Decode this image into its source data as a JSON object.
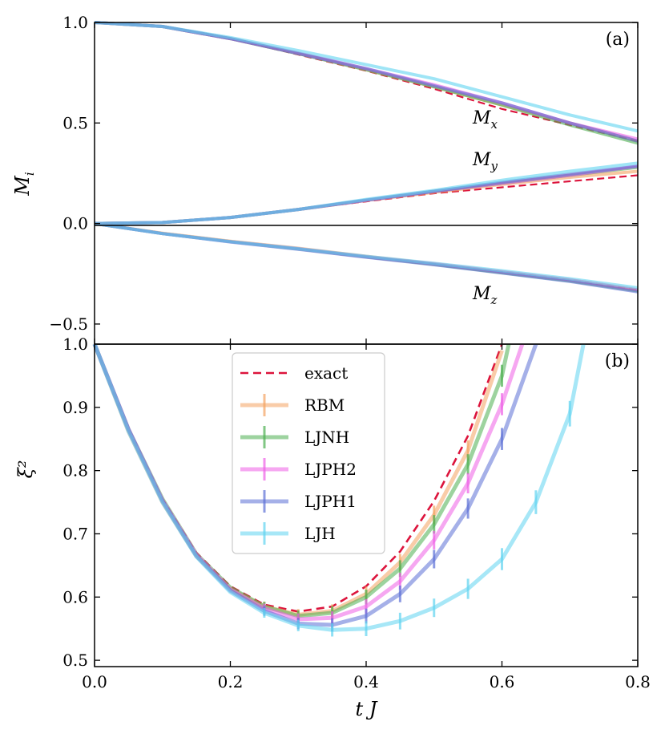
{
  "chart_data": [
    {
      "panel": "(a)",
      "type": "line",
      "ylabel": "M_i",
      "xlabel": "",
      "xlim": [
        0,
        0.8
      ],
      "ylim": [
        -0.6,
        1.0
      ],
      "x_ticks": [
        "0.0",
        "0.2",
        "0.4",
        "0.6",
        "0.8"
      ],
      "y_ticks": [
        "-0.5",
        "0.0",
        "0.5",
        "1.0"
      ],
      "annotations": [
        "M_x",
        "M_y",
        "M_z"
      ],
      "x": [
        0,
        0.1,
        0.2,
        0.3,
        0.4,
        0.5,
        0.6,
        0.7,
        0.8
      ],
      "groups": [
        {
          "component": "M_x",
          "series": [
            {
              "name": "exact",
              "values": [
                1.0,
                0.98,
                0.92,
                0.84,
                0.76,
                0.67,
                0.57,
                0.49,
                0.41
              ]
            },
            {
              "name": "RBM",
              "values": [
                1.0,
                0.98,
                0.92,
                0.845,
                0.765,
                0.68,
                0.59,
                0.5,
                0.41
              ]
            },
            {
              "name": "LJNH",
              "values": [
                1.0,
                0.98,
                0.92,
                0.845,
                0.765,
                0.68,
                0.59,
                0.49,
                0.4
              ]
            },
            {
              "name": "LJPH2",
              "values": [
                1.0,
                0.98,
                0.92,
                0.848,
                0.77,
                0.69,
                0.6,
                0.5,
                0.42
              ]
            },
            {
              "name": "LJPH1",
              "values": [
                1.0,
                0.98,
                0.92,
                0.845,
                0.77,
                0.685,
                0.6,
                0.5,
                0.41
              ]
            },
            {
              "name": "LJH",
              "values": [
                1.0,
                0.98,
                0.925,
                0.86,
                0.79,
                0.72,
                0.63,
                0.54,
                0.46
              ]
            }
          ]
        },
        {
          "component": "M_y",
          "series": [
            {
              "name": "exact",
              "values": [
                0.0,
                0.005,
                0.03,
                0.07,
                0.11,
                0.15,
                0.18,
                0.21,
                0.24
              ]
            },
            {
              "name": "RBM",
              "values": [
                0.0,
                0.005,
                0.03,
                0.07,
                0.115,
                0.155,
                0.195,
                0.23,
                0.26
              ]
            },
            {
              "name": "LJNH",
              "values": [
                0.0,
                0.005,
                0.03,
                0.07,
                0.115,
                0.16,
                0.2,
                0.24,
                0.28
              ]
            },
            {
              "name": "LJPH2",
              "values": [
                0.0,
                0.005,
                0.03,
                0.07,
                0.115,
                0.16,
                0.2,
                0.24,
                0.285
              ]
            },
            {
              "name": "LJPH1",
              "values": [
                0.0,
                0.005,
                0.03,
                0.07,
                0.117,
                0.16,
                0.205,
                0.245,
                0.285
              ]
            },
            {
              "name": "LJH",
              "values": [
                0.0,
                0.005,
                0.03,
                0.07,
                0.12,
                0.165,
                0.215,
                0.26,
                0.3
              ]
            }
          ]
        },
        {
          "component": "M_z",
          "series": [
            {
              "name": "exact",
              "values": [
                0.0,
                -0.05,
                -0.09,
                -0.125,
                -0.165,
                -0.2,
                -0.24,
                -0.28,
                -0.33
              ]
            },
            {
              "name": "RBM",
              "values": [
                0.0,
                -0.048,
                -0.088,
                -0.123,
                -0.163,
                -0.2,
                -0.24,
                -0.28,
                -0.33
              ]
            },
            {
              "name": "LJNH",
              "values": [
                0.0,
                -0.05,
                -0.09,
                -0.126,
                -0.166,
                -0.203,
                -0.245,
                -0.285,
                -0.335
              ]
            },
            {
              "name": "LJPH2",
              "values": [
                0.0,
                -0.05,
                -0.09,
                -0.125,
                -0.165,
                -0.2,
                -0.24,
                -0.28,
                -0.33
              ]
            },
            {
              "name": "LJPH1",
              "values": [
                0.0,
                -0.05,
                -0.092,
                -0.128,
                -0.168,
                -0.205,
                -0.246,
                -0.288,
                -0.34
              ]
            },
            {
              "name": "LJH",
              "values": [
                0.0,
                -0.05,
                -0.09,
                -0.125,
                -0.163,
                -0.198,
                -0.235,
                -0.275,
                -0.32
              ]
            }
          ]
        }
      ]
    },
    {
      "panel": "(b)",
      "type": "line",
      "ylabel": "ξ²",
      "xlabel": "t J",
      "xlim": [
        0,
        0.8
      ],
      "ylim": [
        0.49,
        1.0
      ],
      "x_ticks": [
        "0.0",
        "0.2",
        "0.4",
        "0.6",
        "0.8"
      ],
      "y_ticks": [
        "0.5",
        "0.6",
        "0.7",
        "0.8",
        "0.9",
        "1.0"
      ],
      "legend_position": "upper-center",
      "series": [
        {
          "name": "exact",
          "style": "dashed",
          "color": "#dc143c",
          "x": [
            0,
            0.05,
            0.1,
            0.15,
            0.2,
            0.25,
            0.3,
            0.35,
            0.4,
            0.45,
            0.5,
            0.55,
            0.6
          ],
          "values": [
            1.0,
            0.865,
            0.755,
            0.67,
            0.617,
            0.588,
            0.577,
            0.585,
            0.617,
            0.672,
            0.752,
            0.855,
            1.0
          ]
        },
        {
          "name": "RBM",
          "style": "errorbar",
          "color": "#f4a261",
          "x": [
            0,
            0.05,
            0.1,
            0.15,
            0.2,
            0.25,
            0.3,
            0.35,
            0.4,
            0.45,
            0.5,
            0.55,
            0.6
          ],
          "values": [
            1.0,
            0.862,
            0.75,
            0.665,
            0.613,
            0.585,
            0.572,
            0.578,
            0.605,
            0.655,
            0.73,
            0.832,
            0.99
          ]
        },
        {
          "name": "LJNH",
          "style": "errorbar",
          "color": "#4caf50",
          "x": [
            0,
            0.05,
            0.1,
            0.15,
            0.2,
            0.25,
            0.3,
            0.35,
            0.4,
            0.45,
            0.5,
            0.55,
            0.6,
            0.61
          ],
          "values": [
            1.0,
            0.865,
            0.755,
            0.668,
            0.615,
            0.585,
            0.57,
            0.575,
            0.6,
            0.645,
            0.715,
            0.81,
            0.95,
            1.0
          ]
        },
        {
          "name": "LJPH2",
          "style": "errorbar",
          "color": "#ee5ee6",
          "x": [
            0,
            0.05,
            0.1,
            0.15,
            0.2,
            0.25,
            0.3,
            0.35,
            0.4,
            0.45,
            0.5,
            0.55,
            0.6,
            0.63
          ],
          "values": [
            1.0,
            0.865,
            0.753,
            0.667,
            0.612,
            0.582,
            0.565,
            0.567,
            0.585,
            0.625,
            0.69,
            0.78,
            0.905,
            1.0
          ]
        },
        {
          "name": "LJPH1",
          "style": "errorbar",
          "color": "#5b6fd6",
          "x": [
            0,
            0.05,
            0.1,
            0.15,
            0.2,
            0.25,
            0.3,
            0.35,
            0.4,
            0.45,
            0.5,
            0.55,
            0.6,
            0.65
          ],
          "values": [
            1.0,
            0.865,
            0.752,
            0.665,
            0.61,
            0.578,
            0.558,
            0.556,
            0.57,
            0.605,
            0.66,
            0.74,
            0.85,
            1.0
          ]
        },
        {
          "name": "LJH",
          "style": "errorbar",
          "color": "#5fd3f0",
          "x": [
            0,
            0.05,
            0.1,
            0.15,
            0.2,
            0.25,
            0.3,
            0.35,
            0.4,
            0.45,
            0.5,
            0.55,
            0.6,
            0.65,
            0.7,
            0.72
          ],
          "values": [
            1.0,
            0.862,
            0.75,
            0.664,
            0.608,
            0.575,
            0.555,
            0.548,
            0.55,
            0.562,
            0.583,
            0.613,
            0.66,
            0.75,
            0.89,
            1.0
          ]
        }
      ]
    }
  ],
  "colors": {
    "exact": "#dc143c",
    "RBM": "#f4a261",
    "LJNH": "#4caf50",
    "LJPH2": "#ee5ee6",
    "LJPH1": "#5b6fd6",
    "LJH": "#5fd3f0"
  }
}
